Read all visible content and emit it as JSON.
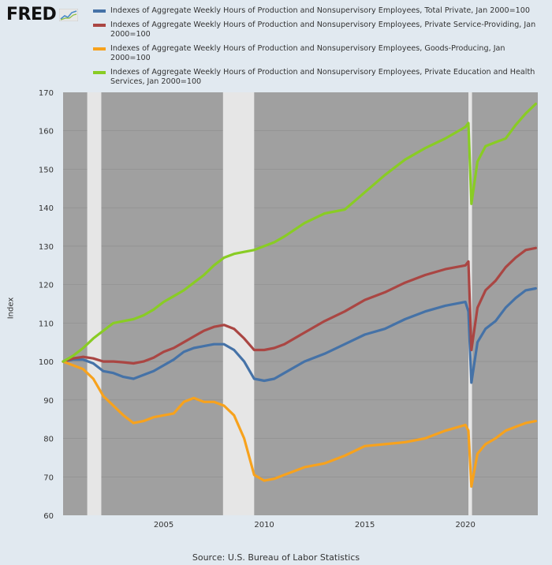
{
  "logo": {
    "text": "FRED"
  },
  "legend": [
    {
      "label": "Indexes of Aggregate Weekly Hours of Production and Nonsupervisory Employees, Total Private, Jan 2000=100",
      "color": "#4572a7"
    },
    {
      "label": "Indexes of Aggregate Weekly Hours of Production and Nonsupervisory Employees, Private Service-Providing, Jan 2000=100",
      "color": "#aa4643"
    },
    {
      "label": "Indexes of Aggregate Weekly Hours of Production and Nonsupervisory Employees, Goods-Producing, Jan 2000=100",
      "color": "#f7a21d"
    },
    {
      "label": "Indexes of Aggregate Weekly Hours of Production and Nonsupervisory Employees, Private Education and Health Services, Jan 2000=100",
      "color": "#89cc24"
    }
  ],
  "source": "Source: U.S. Bureau of Labor Statistics",
  "chart_data": {
    "type": "line",
    "ylabel": "Index",
    "xlabel": "",
    "xlim": [
      2000.0,
      2023.6
    ],
    "ylim": [
      60,
      170
    ],
    "yticks": [
      60,
      70,
      80,
      90,
      100,
      110,
      120,
      130,
      140,
      150,
      160,
      170
    ],
    "xticks": [
      2005,
      2010,
      2015,
      2020
    ],
    "recessions": [
      [
        2001.2,
        2001.9
      ],
      [
        2007.95,
        2009.5
      ],
      [
        2020.15,
        2020.33
      ]
    ],
    "background": "#a0a0a0",
    "series": [
      {
        "name": "Indexes of Aggregate Weekly Hours of Production and Nonsupervisory Employees, Total Private, Jan 2000=100",
        "color": "#4572a7",
        "x": [
          2000.0,
          2000.5,
          2001.0,
          2001.5,
          2002.0,
          2002.5,
          2003.0,
          2003.5,
          2004.0,
          2004.5,
          2005.0,
          2005.5,
          2006.0,
          2006.5,
          2007.0,
          2007.5,
          2008.0,
          2008.5,
          2009.0,
          2009.5,
          2010.0,
          2010.5,
          2011.0,
          2012.0,
          2013.0,
          2014.0,
          2015.0,
          2016.0,
          2017.0,
          2018.0,
          2019.0,
          2020.0,
          2020.15,
          2020.3,
          2020.6,
          2021.0,
          2021.5,
          2022.0,
          2022.5,
          2023.0,
          2023.5
        ],
        "y": [
          100,
          100.5,
          100.5,
          99.5,
          97.5,
          97,
          96,
          95.5,
          96.5,
          97.5,
          99,
          100.5,
          102.5,
          103.5,
          104,
          104.5,
          104.5,
          103,
          100,
          95.5,
          95,
          95.5,
          97,
          100,
          102,
          104.5,
          107,
          108.5,
          111,
          113,
          114.5,
          115.5,
          113,
          94.5,
          105,
          108.5,
          110.5,
          114,
          116.5,
          118.5,
          119
        ]
      },
      {
        "name": "Indexes of Aggregate Weekly Hours of Production and Nonsupervisory Employees, Private Service-Providing, Jan 2000=100",
        "color": "#aa4643",
        "x": [
          2000.0,
          2000.5,
          2001.0,
          2001.5,
          2002.0,
          2002.5,
          2003.0,
          2003.5,
          2004.0,
          2004.5,
          2005.0,
          2005.5,
          2006.0,
          2006.5,
          2007.0,
          2007.5,
          2008.0,
          2008.5,
          2009.0,
          2009.5,
          2010.0,
          2010.5,
          2011.0,
          2012.0,
          2013.0,
          2014.0,
          2015.0,
          2016.0,
          2017.0,
          2018.0,
          2019.0,
          2020.0,
          2020.15,
          2020.3,
          2020.6,
          2021.0,
          2021.5,
          2022.0,
          2022.5,
          2023.0,
          2023.5
        ],
        "y": [
          100,
          100.8,
          101.2,
          100.8,
          100,
          100,
          99.8,
          99.5,
          100,
          101,
          102.5,
          103.5,
          105,
          106.5,
          108,
          109,
          109.5,
          108.5,
          106,
          103,
          103,
          103.5,
          104.5,
          107.5,
          110.5,
          113,
          116,
          118,
          120.5,
          122.5,
          124,
          125,
          126,
          103,
          114,
          118.5,
          121,
          124.5,
          127,
          129,
          129.5
        ]
      },
      {
        "name": "Indexes of Aggregate Weekly Hours of Production and Nonsupervisory Employees, Goods-Producing, Jan 2000=100",
        "color": "#f7a21d",
        "x": [
          2000.0,
          2000.5,
          2001.0,
          2001.5,
          2002.0,
          2002.5,
          2003.0,
          2003.5,
          2004.0,
          2004.5,
          2005.0,
          2005.5,
          2006.0,
          2006.5,
          2007.0,
          2007.5,
          2008.0,
          2008.5,
          2009.0,
          2009.5,
          2010.0,
          2010.5,
          2011.0,
          2012.0,
          2013.0,
          2014.0,
          2015.0,
          2016.0,
          2017.0,
          2018.0,
          2019.0,
          2020.0,
          2020.15,
          2020.3,
          2020.6,
          2021.0,
          2021.5,
          2022.0,
          2022.5,
          2023.0,
          2023.5
        ],
        "y": [
          100,
          99,
          98,
          95.5,
          91,
          88.5,
          86,
          84,
          84.5,
          85.5,
          86,
          86.5,
          89.5,
          90.5,
          89.5,
          89.5,
          88.5,
          86,
          80,
          70.5,
          69,
          69.5,
          70.5,
          72.5,
          73.5,
          75.5,
          78,
          78.5,
          79,
          80,
          82,
          83.5,
          82,
          67.5,
          76,
          78.5,
          80,
          82,
          83,
          84,
          84.5
        ]
      },
      {
        "name": "Indexes of Aggregate Weekly Hours of Production and Nonsupervisory Employees, Private Education and Health Services, Jan 2000=100",
        "color": "#89cc24",
        "x": [
          2000.0,
          2000.5,
          2001.0,
          2001.5,
          2002.0,
          2002.5,
          2003.0,
          2003.5,
          2004.0,
          2004.5,
          2005.0,
          2005.5,
          2006.0,
          2006.5,
          2007.0,
          2007.5,
          2008.0,
          2008.5,
          2009.0,
          2009.5,
          2010.0,
          2010.5,
          2011.0,
          2012.0,
          2013.0,
          2014.0,
          2015.0,
          2016.0,
          2017.0,
          2018.0,
          2019.0,
          2020.0,
          2020.15,
          2020.3,
          2020.6,
          2021.0,
          2021.5,
          2022.0,
          2022.5,
          2023.0,
          2023.5
        ],
        "y": [
          100,
          101.5,
          103.5,
          106,
          108,
          110,
          110.5,
          111,
          112,
          113.5,
          115.5,
          117,
          118.5,
          120.5,
          122.5,
          125,
          127,
          128,
          128.5,
          129,
          130,
          131,
          132.5,
          136,
          138.5,
          139.5,
          144,
          148.5,
          152.5,
          155.5,
          158,
          161,
          162,
          141,
          152,
          156,
          157,
          158,
          161.5,
          164.5,
          167
        ]
      }
    ]
  }
}
